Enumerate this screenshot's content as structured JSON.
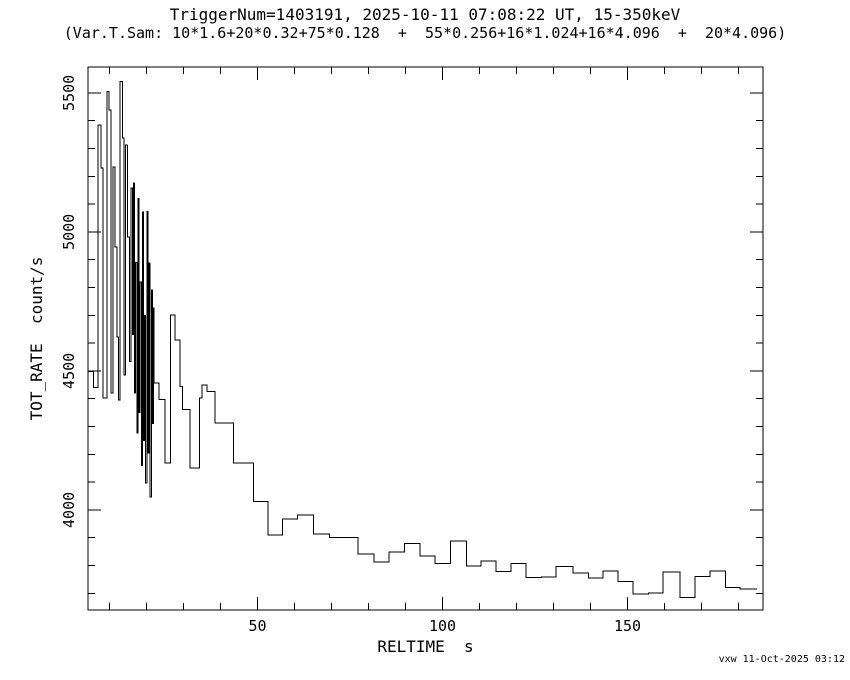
{
  "header": {
    "title": "TriggerNum=1403191, 2025-10-11 07:08:22 UT, 15-350keV",
    "subtitle": "(Var.T.Sam: 10*1.6+20*0.32+75*0.128  +  55*0.256+16*1.024+16*4.096  +  20*4.096)"
  },
  "footer": {
    "credit": "vxw 11-Oct-2025 03:12"
  },
  "colors": {
    "line": "#000000",
    "background": "#ffffff",
    "text": "#000000"
  },
  "chart_data": {
    "type": "line",
    "step_mode": "step-post",
    "title": "TriggerNum=1403191, 2025-10-11 07:08:22 UT, 15-350keV",
    "subtitle": "(Var.T.Sam: 10*1.6+20*0.32+75*0.128  +  55*0.256+16*1.024+16*4.096  +  20*4.096)",
    "xlabel": "RELTIME  s",
    "ylabel": "TOT_RATE  count/s",
    "xlim": [
      4.2,
      186.6
    ],
    "ylim": [
      3640,
      5593
    ],
    "grid": false,
    "legend": null,
    "x_ticks": {
      "minor_step": 10,
      "major": [
        50,
        100,
        150
      ],
      "labels": [
        "50",
        "100",
        "150"
      ]
    },
    "y_ticks": {
      "minor_step": 100,
      "major": [
        4000,
        4500,
        5000,
        5500
      ],
      "labels": [
        "4000",
        "4500",
        "5000",
        "5500"
      ]
    },
    "series": [
      {
        "name": "TOT_RATE",
        "points": [
          [
            4.2,
            4497
          ],
          [
            5.7,
            4440
          ],
          [
            6.9,
            5385
          ],
          [
            7.7,
            5230
          ],
          [
            8.2,
            4403
          ],
          [
            9.3,
            5504
          ],
          [
            9.9,
            5439
          ],
          [
            10.4,
            4420
          ],
          [
            11.0,
            5234
          ],
          [
            11.5,
            4946
          ],
          [
            12.0,
            4622
          ],
          [
            12.4,
            4396
          ],
          [
            12.9,
            5541
          ],
          [
            13.5,
            5338
          ],
          [
            13.9,
            4486
          ],
          [
            14.4,
            5313
          ],
          [
            14.9,
            4982
          ],
          [
            15.4,
            4534
          ],
          [
            15.8,
            5158
          ],
          [
            16.2,
            4630
          ],
          [
            16.5,
            5176
          ],
          [
            16.8,
            4420
          ],
          [
            17.1,
            4890
          ],
          [
            17.4,
            4277
          ],
          [
            17.7,
            5120
          ],
          [
            18.0,
            4350
          ],
          [
            18.3,
            4820
          ],
          [
            18.6,
            4160
          ],
          [
            18.9,
            5072
          ],
          [
            19.2,
            4250
          ],
          [
            19.5,
            4700
          ],
          [
            19.8,
            4097
          ],
          [
            20.1,
            5073
          ],
          [
            20.4,
            4205
          ],
          [
            20.7,
            4888
          ],
          [
            21.0,
            4047
          ],
          [
            21.3,
            4791
          ],
          [
            21.6,
            4310
          ],
          [
            21.9,
            4727
          ],
          [
            22.0,
            4457
          ],
          [
            23.4,
            4398
          ],
          [
            25.0,
            4169
          ],
          [
            26.5,
            4701
          ],
          [
            27.7,
            4611
          ],
          [
            29.0,
            4443
          ],
          [
            29.8,
            4362
          ],
          [
            31.8,
            4150
          ],
          [
            34.3,
            4402
          ],
          [
            35.0,
            4450
          ],
          [
            36.3,
            4425
          ],
          [
            38.5,
            4312
          ],
          [
            43.5,
            4168
          ],
          [
            48.9,
            4030
          ],
          [
            52.9,
            3910
          ],
          [
            56.8,
            3967
          ],
          [
            60.8,
            3982
          ],
          [
            65.1,
            3913
          ],
          [
            69.4,
            3900
          ],
          [
            77.2,
            3841
          ],
          [
            81.5,
            3812
          ],
          [
            85.6,
            3848
          ],
          [
            89.7,
            3880
          ],
          [
            93.9,
            3835
          ],
          [
            98.0,
            3808
          ],
          [
            102.2,
            3889
          ],
          [
            106.5,
            3799
          ],
          [
            110.4,
            3817
          ],
          [
            114.4,
            3778
          ],
          [
            118.5,
            3808
          ],
          [
            122.6,
            3756
          ],
          [
            126.7,
            3759
          ],
          [
            130.7,
            3797
          ],
          [
            135.3,
            3773
          ],
          [
            139.4,
            3755
          ],
          [
            143.4,
            3781
          ],
          [
            147.4,
            3742
          ],
          [
            151.5,
            3698
          ],
          [
            155.6,
            3702
          ],
          [
            159.6,
            3776
          ],
          [
            164.2,
            3685
          ],
          [
            168.2,
            3761
          ],
          [
            172.3,
            3781
          ],
          [
            176.4,
            3721
          ],
          [
            180.4,
            3716
          ],
          [
            185.0,
            3716
          ]
        ]
      }
    ]
  }
}
